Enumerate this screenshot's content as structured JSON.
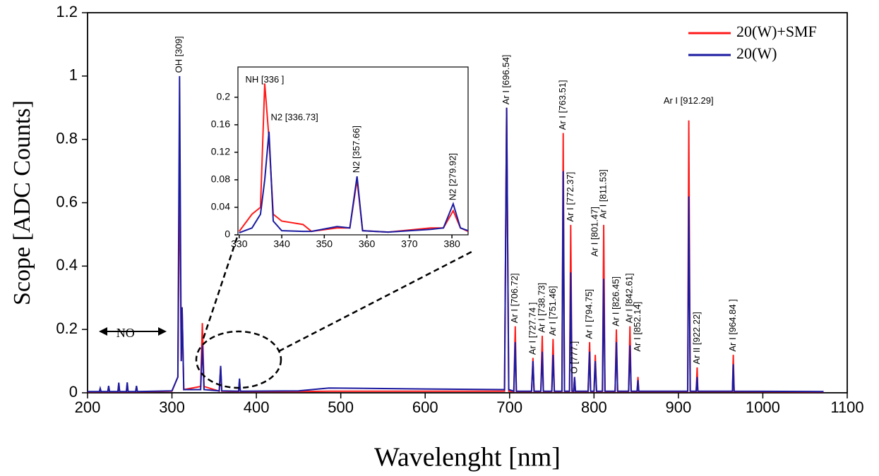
{
  "chart_data": [
    {
      "type": "line",
      "x_label": "Wavelenght [nm]",
      "y_label": "Scope [ADC Counts]",
      "xlim": [
        200,
        1100
      ],
      "ylim": [
        0,
        1.2
      ],
      "xticks": [
        200,
        300,
        400,
        500,
        600,
        700,
        800,
        900,
        1000,
        1100
      ],
      "yticks": [
        0,
        0.2,
        0.4,
        0.6,
        0.8,
        1,
        1.2
      ],
      "x": [
        200,
        214,
        215,
        216,
        224,
        225,
        226,
        236,
        237,
        238,
        246,
        247,
        248,
        257,
        258,
        259,
        300,
        307,
        309,
        311,
        312,
        314,
        334,
        336,
        338,
        356,
        357.7,
        359,
        379,
        380,
        381,
        450,
        486,
        600,
        694,
        696.5,
        699,
        705,
        706.7,
        708,
        726,
        727.7,
        729,
        737,
        738.7,
        740,
        750,
        751.5,
        753,
        762,
        763.5,
        765,
        771,
        772.4,
        774,
        776,
        777,
        778,
        793,
        794.8,
        796,
        800,
        801.5,
        803,
        810,
        811.5,
        813,
        825,
        826.5,
        828,
        841,
        842.6,
        844,
        851,
        852.1,
        853,
        911,
        912.3,
        914,
        921,
        922.2,
        923,
        964,
        965,
        966,
        1072
      ],
      "series": [
        {
          "name": "20(W)+SMF",
          "color": "#ff1a1a",
          "values": [
            0.003,
            0.003,
            0.012,
            0.003,
            0.003,
            0.02,
            0.003,
            0.003,
            0.03,
            0.003,
            0.003,
            0.03,
            0.003,
            0.003,
            0.02,
            0.003,
            0.005,
            0.05,
            0.72,
            0.1,
            0.27,
            0.01,
            0.02,
            0.22,
            0.02,
            0.005,
            0.08,
            0.005,
            0.004,
            0.04,
            0.004,
            0.004,
            0.005,
            0.005,
            0.005,
            0.9,
            0.005,
            0.004,
            0.21,
            0.004,
            0.004,
            0.11,
            0.004,
            0.004,
            0.18,
            0.004,
            0.004,
            0.17,
            0.004,
            0.004,
            0.82,
            0.004,
            0.004,
            0.53,
            0.004,
            0.004,
            0.05,
            0.004,
            0.004,
            0.16,
            0.004,
            0.004,
            0.12,
            0.004,
            0.004,
            0.53,
            0.004,
            0.004,
            0.2,
            0.004,
            0.004,
            0.21,
            0.004,
            0.004,
            0.05,
            0.004,
            0.004,
            0.86,
            0.004,
            0.004,
            0.08,
            0.004,
            0.004,
            0.12,
            0.004,
            0.003
          ]
        },
        {
          "name": "20(W)",
          "color": "#1a1aa0",
          "values": [
            0.004,
            0.004,
            0.014,
            0.004,
            0.004,
            0.022,
            0.004,
            0.004,
            0.032,
            0.004,
            0.004,
            0.033,
            0.004,
            0.004,
            0.022,
            0.004,
            0.006,
            0.05,
            1.0,
            0.1,
            0.27,
            0.01,
            0.01,
            0.15,
            0.01,
            0.006,
            0.085,
            0.006,
            0.005,
            0.045,
            0.005,
            0.006,
            0.015,
            0.012,
            0.01,
            0.9,
            0.01,
            0.005,
            0.16,
            0.005,
            0.005,
            0.1,
            0.005,
            0.005,
            0.13,
            0.005,
            0.005,
            0.12,
            0.005,
            0.005,
            0.7,
            0.005,
            0.005,
            0.38,
            0.005,
            0.005,
            0.05,
            0.005,
            0.005,
            0.13,
            0.005,
            0.005,
            0.1,
            0.005,
            0.005,
            0.36,
            0.005,
            0.005,
            0.16,
            0.005,
            0.005,
            0.15,
            0.005,
            0.005,
            0.04,
            0.005,
            0.005,
            0.62,
            0.005,
            0.005,
            0.05,
            0.005,
            0.005,
            0.09,
            0.005,
            0.004
          ]
        }
      ],
      "annotations": [
        "OH [309]",
        "Ar I  [696.54]",
        "Ar I  [706.72]",
        "Ar I [727.74 ]",
        "Ar I  [738.73]",
        "Ar I  [751.46]",
        "Ar I  [763.51]",
        "Ar I  [772.37]",
        "O [777.]",
        "Ar I [794.75]",
        "Ar I  [801.47]",
        "Ar I  [811.53]",
        "Ar I  [826.45]",
        "Ar I  [842.61]",
        "Ar I  [852.14]",
        "Ar I  [912.29]",
        "Ar II [922.22]",
        "Ar I [964.84 ]",
        "NO"
      ],
      "legend": "upper right"
    },
    {
      "type": "line",
      "xlim": [
        329.7,
        383.8
      ],
      "ylim": [
        0,
        0.244
      ],
      "xticks": [
        330,
        340,
        350,
        360,
        370,
        380
      ],
      "yticks": [
        0,
        0.04,
        0.08,
        0.12,
        0.16,
        0.2
      ],
      "x": [
        330,
        333,
        335,
        336,
        337,
        338,
        340,
        345,
        347,
        353,
        356,
        357.7,
        359,
        365,
        375,
        378,
        380.3,
        382,
        383.8
      ],
      "series": [
        {
          "color": "#ff1a1a",
          "values": [
            0.005,
            0.03,
            0.04,
            0.22,
            0.14,
            0.03,
            0.02,
            0.015,
            0.005,
            0.01,
            0.01,
            0.08,
            0.006,
            0.004,
            0.01,
            0.01,
            0.035,
            0.01,
            0.005
          ]
        },
        {
          "color": "#1a1aa0",
          "values": [
            0.003,
            0.01,
            0.03,
            0.08,
            0.15,
            0.02,
            0.006,
            0.005,
            0.005,
            0.012,
            0.01,
            0.085,
            0.006,
            0.004,
            0.008,
            0.01,
            0.045,
            0.01,
            0.006
          ]
        }
      ],
      "annotations": [
        "NH [336 ]",
        "N2 [336.73]",
        "N2  [357.66]",
        "N2  [279.92]"
      ]
    }
  ]
}
